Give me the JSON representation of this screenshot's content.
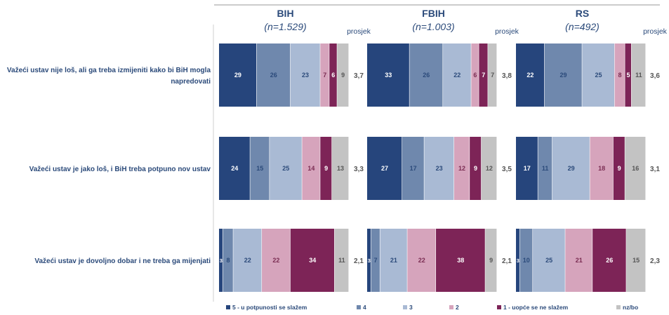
{
  "chart_data": {
    "type": "bar",
    "stacked": "horizontal-100",
    "panels": [
      {
        "title": "BIH",
        "n_label": "(n=1.529)",
        "mean_label": "prosjek"
      },
      {
        "title": "FBIH",
        "n_label": "(n=1.003)",
        "mean_label": "prosjek"
      },
      {
        "title": "RS",
        "n_label": "(n=492)",
        "mean_label": "prosjek"
      }
    ],
    "categories": [
      "Važeći ustav nije loš, ali ga treba izmijeniti kako bi BiH mogla napredovati",
      "Važeći ustav je jako loš, i BiH treba potpuno nov ustav",
      "Važeći ustav je dovoljno dobar i ne treba ga mijenjati"
    ],
    "category_lines": [
      [
        "Važeći ustav nije loš, ali ga treba izmijeniti kako bi BiH mogla",
        "napredovati"
      ],
      [
        "Važeći ustav je jako loš, i BiH treba potpuno nov ustav"
      ],
      [
        "Važeći ustav je dovoljno dobar i ne treba ga mijenjati"
      ]
    ],
    "series": [
      {
        "name": "5 - u potpunosti se slažem",
        "color": "#26457c",
        "label_color": "#ffffff"
      },
      {
        "name": "4",
        "color": "#6f88ad",
        "label_color": "#2b4a7a"
      },
      {
        "name": "3",
        "color": "#a9bad4",
        "label_color": "#2b4a7a"
      },
      {
        "name": "2",
        "color": "#d6a4bc",
        "label_color": "#7a2c52"
      },
      {
        "name": "1 - uopće se ne slažem",
        "color": "#7d2457",
        "label_color": "#ffffff"
      },
      {
        "name": "nz/bo",
        "color": "#c3c3c3",
        "label_color": "#555555"
      }
    ],
    "values": [
      [
        [
          29,
          26,
          23,
          7,
          6,
          9
        ],
        [
          33,
          26,
          22,
          6,
          7,
          7
        ],
        [
          22,
          29,
          25,
          8,
          5,
          11
        ]
      ],
      [
        [
          24,
          15,
          25,
          14,
          9,
          13
        ],
        [
          27,
          17,
          23,
          12,
          9,
          12
        ],
        [
          17,
          11,
          29,
          18,
          9,
          16
        ]
      ],
      [
        [
          3,
          8,
          22,
          22,
          34,
          11
        ],
        [
          3,
          7,
          21,
          22,
          38,
          9
        ],
        [
          3,
          10,
          25,
          21,
          26,
          15
        ]
      ]
    ],
    "means": [
      [
        "3,7",
        "3,8",
        "3,6"
      ],
      [
        "3,3",
        "3,5",
        "3,1"
      ],
      [
        "2,1",
        "2,1",
        "2,3"
      ]
    ],
    "legend_position": "bottom",
    "grid": false
  }
}
